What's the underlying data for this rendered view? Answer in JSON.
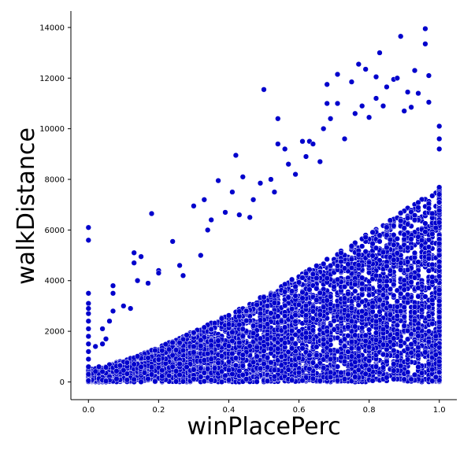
{
  "chart_data": {
    "type": "scatter",
    "xlabel": "winPlacePerc",
    "ylabel": "walkDistance",
    "xlim": [
      -0.05,
      1.05
    ],
    "ylim": [
      -700,
      14650
    ],
    "xticks": [
      0.0,
      0.2,
      0.4,
      0.6,
      0.8,
      1.0
    ],
    "xtick_labels": [
      "0.0",
      "0.2",
      "0.4",
      "0.6",
      "0.8",
      "1.0"
    ],
    "yticks": [
      0,
      2000,
      4000,
      6000,
      8000,
      10000,
      12000,
      14000
    ],
    "ytick_labels": [
      "0",
      "2000",
      "4000",
      "6000",
      "8000",
      "10000",
      "12000",
      "14000"
    ],
    "grid": false,
    "marker_color": "#0000cc",
    "marker_edge_color": "#ffffff",
    "points": [
      [
        0.0,
        6100
      ],
      [
        0.0,
        5600
      ],
      [
        0.0,
        3500
      ],
      [
        0.0,
        3100
      ],
      [
        0.0,
        2900
      ],
      [
        0.0,
        2700
      ],
      [
        0.0,
        2400
      ],
      [
        0.0,
        2100
      ],
      [
        0.0,
        1800
      ],
      [
        0.0,
        1500
      ],
      [
        0.0,
        1200
      ],
      [
        0.0,
        900
      ],
      [
        0.0,
        600
      ],
      [
        0.0,
        300
      ],
      [
        0.0,
        50
      ],
      [
        0.02,
        1400
      ],
      [
        0.03,
        600
      ],
      [
        0.04,
        2100
      ],
      [
        0.04,
        1500
      ],
      [
        0.05,
        1700
      ],
      [
        0.06,
        2400
      ],
      [
        0.07,
        3800
      ],
      [
        0.07,
        3500
      ],
      [
        0.07,
        2800
      ],
      [
        0.1,
        3000
      ],
      [
        0.12,
        2900
      ],
      [
        0.13,
        5100
      ],
      [
        0.13,
        4700
      ],
      [
        0.14,
        4000
      ],
      [
        0.15,
        4950
      ],
      [
        0.17,
        3900
      ],
      [
        0.18,
        6650
      ],
      [
        0.2,
        4400
      ],
      [
        0.2,
        4300
      ],
      [
        0.24,
        5550
      ],
      [
        0.26,
        4600
      ],
      [
        0.27,
        4200
      ],
      [
        0.3,
        6950
      ],
      [
        0.32,
        5000
      ],
      [
        0.33,
        7200
      ],
      [
        0.34,
        6000
      ],
      [
        0.35,
        6400
      ],
      [
        0.37,
        7950
      ],
      [
        0.39,
        6700
      ],
      [
        0.41,
        7500
      ],
      [
        0.42,
        8950
      ],
      [
        0.43,
        6600
      ],
      [
        0.44,
        8100
      ],
      [
        0.46,
        6500
      ],
      [
        0.47,
        7200
      ],
      [
        0.49,
        7850
      ],
      [
        0.5,
        11550
      ],
      [
        0.52,
        8000
      ],
      [
        0.53,
        7500
      ],
      [
        0.54,
        10400
      ],
      [
        0.54,
        9400
      ],
      [
        0.56,
        9200
      ],
      [
        0.57,
        8600
      ],
      [
        0.59,
        8200
      ],
      [
        0.61,
        9500
      ],
      [
        0.62,
        8900
      ],
      [
        0.63,
        9500
      ],
      [
        0.64,
        9400
      ],
      [
        0.66,
        8700
      ],
      [
        0.67,
        10000
      ],
      [
        0.68,
        11750
      ],
      [
        0.68,
        11000
      ],
      [
        0.69,
        10400
      ],
      [
        0.71,
        12150
      ],
      [
        0.71,
        11000
      ],
      [
        0.73,
        9600
      ],
      [
        0.75,
        11850
      ],
      [
        0.76,
        10600
      ],
      [
        0.77,
        12550
      ],
      [
        0.78,
        10900
      ],
      [
        0.79,
        12350
      ],
      [
        0.8,
        10450
      ],
      [
        0.82,
        12050
      ],
      [
        0.82,
        11200
      ],
      [
        0.83,
        13000
      ],
      [
        0.84,
        10900
      ],
      [
        0.85,
        11650
      ],
      [
        0.87,
        11950
      ],
      [
        0.88,
        12000
      ],
      [
        0.89,
        13650
      ],
      [
        0.9,
        10700
      ],
      [
        0.91,
        11450
      ],
      [
        0.92,
        10850
      ],
      [
        0.93,
        12300
      ],
      [
        0.94,
        11400
      ],
      [
        0.96,
        13950
      ],
      [
        0.96,
        13350
      ],
      [
        0.97,
        12100
      ],
      [
        0.97,
        11050
      ],
      [
        1.0,
        10100
      ],
      [
        1.0,
        9600
      ],
      [
        1.0,
        9200
      ]
    ]
  }
}
